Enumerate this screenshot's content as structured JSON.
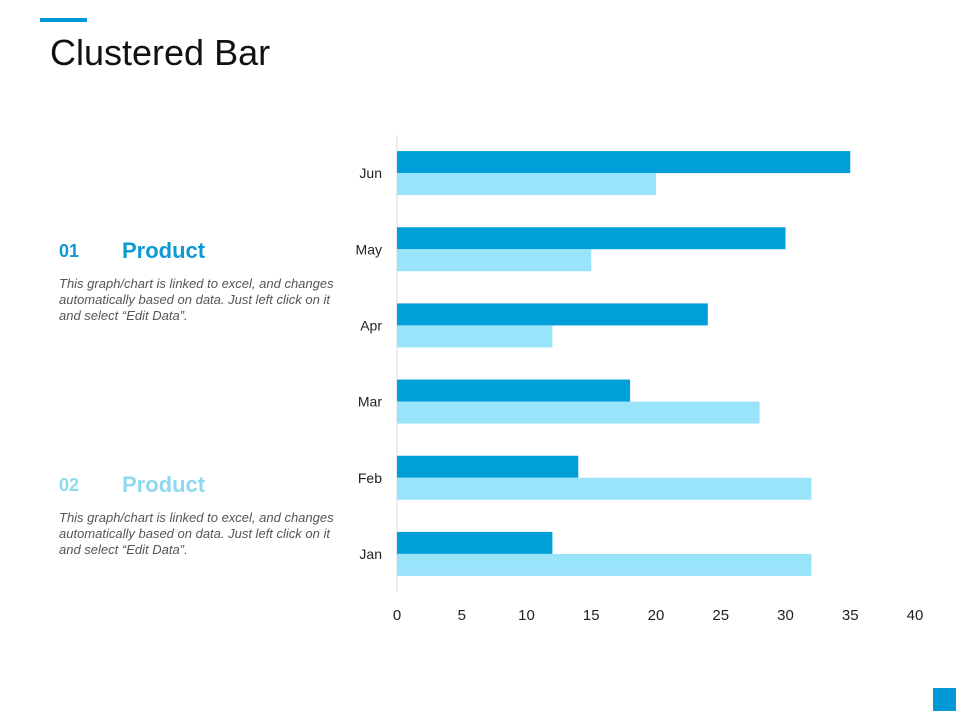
{
  "slide": {
    "title": "Clustered Bar",
    "accent_color": "#0098d6"
  },
  "items": [
    {
      "number": "01",
      "title": "Product",
      "description": "This graph/chart is linked to excel, and changes automatically based on data. Just left click on it and select “Edit Data”."
    },
    {
      "number": "02",
      "title": "Product",
      "description": "This graph/chart is linked to excel, and changes automatically based on data. Just left click on it and select “Edit Data”."
    }
  ],
  "chart_data": {
    "type": "bar",
    "orientation": "horizontal",
    "categories": [
      "Jan",
      "Feb",
      "Mar",
      "Apr",
      "May",
      "Jun"
    ],
    "series": [
      {
        "values": [
          12,
          14,
          18,
          24,
          30,
          35
        ],
        "color": "#009fd9"
      },
      {
        "values": [
          32,
          32,
          28,
          12,
          15,
          20
        ],
        "color": "#9ae4fb"
      }
    ],
    "title": "",
    "xlabel": "",
    "ylabel": "",
    "xlim": [
      0,
      40
    ],
    "x_ticks": [
      0,
      5,
      10,
      15,
      20,
      25,
      30,
      35,
      40
    ],
    "grid": false,
    "legend": "none"
  }
}
